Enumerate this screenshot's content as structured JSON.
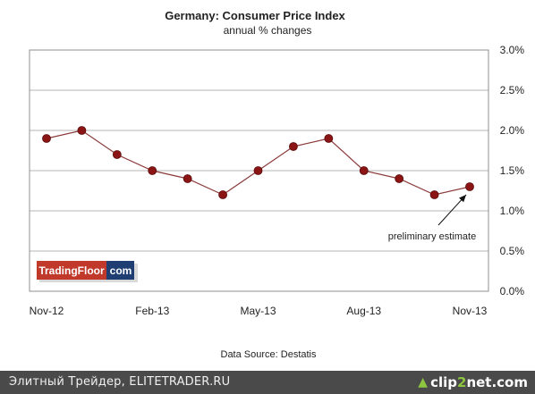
{
  "chart_data": {
    "type": "line",
    "title": "Germany: Consumer Price Index",
    "subtitle": "annual  % changes",
    "categories": [
      "Nov-12",
      "Dec-12",
      "Jan-13",
      "Feb-13",
      "Mar-13",
      "Apr-13",
      "May-13",
      "Jun-13",
      "Jul-13",
      "Aug-13",
      "Sep-13",
      "Oct-13",
      "Nov-13"
    ],
    "x_tick_labels": [
      "Nov-12",
      "Feb-13",
      "May-13",
      "Aug-13",
      "Nov-13"
    ],
    "series": [
      {
        "values": [
          1.9,
          2.0,
          1.7,
          1.5,
          1.4,
          1.2,
          1.5,
          1.8,
          1.9,
          1.5,
          1.4,
          1.2,
          1.3
        ]
      }
    ],
    "ylim": [
      0,
      3.0
    ],
    "y_ticks": [
      0,
      0.5,
      1.0,
      1.5,
      2.0,
      2.5,
      3.0
    ],
    "y_tick_labels": [
      "0.0%",
      "0.5%",
      "1.0%",
      "1.5%",
      "2.0%",
      "2.5%",
      "3.0%"
    ],
    "y_axis_side": "right",
    "grid": true,
    "legend": "none",
    "annotation": {
      "text": "preliminary estimate",
      "target_category": "Nov-13"
    },
    "source": "Data Source: Destatis",
    "colors": {
      "line": "#8b3a3a",
      "marker": "#8b1414"
    }
  },
  "logo": {
    "left": "TradingFloor",
    "right": "com",
    "red": "#c0392b",
    "navy": "#1f3f73"
  },
  "footer": {
    "text": "Элитный Трейдер, ELITETRADER.RU",
    "brand_prefix": "clip",
    "brand_two": "2",
    "brand_suffix": "net.com",
    "icon": "upload-arrow-icon"
  }
}
